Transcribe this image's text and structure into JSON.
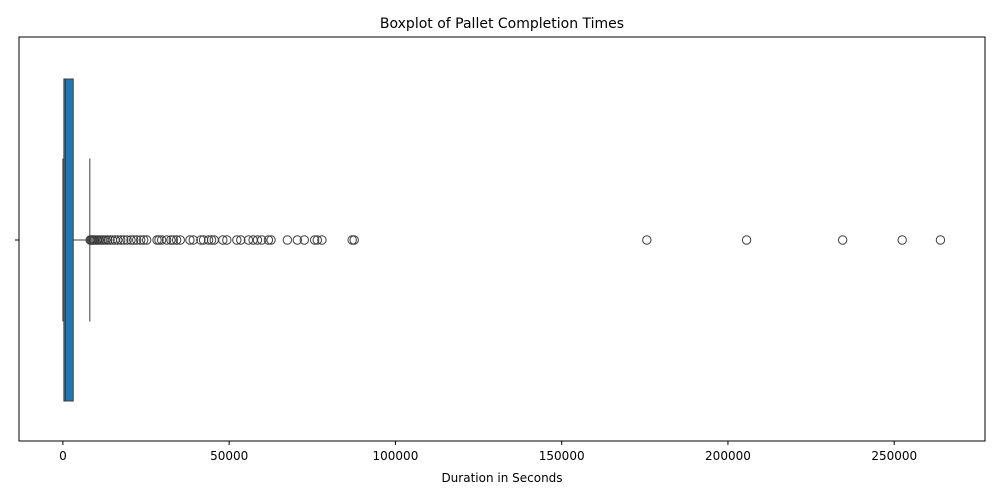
{
  "chart_data": {
    "type": "boxplot",
    "orientation": "horizontal",
    "title": "Boxplot of Pallet Completion Times",
    "xlabel": "Duration in Seconds",
    "ylabel": "",
    "xlim": [
      -13200,
      277300
    ],
    "xticks": [
      0,
      50000,
      100000,
      150000,
      200000,
      250000
    ],
    "xtick_labels": [
      "0",
      "50000",
      "100000",
      "150000",
      "200000",
      "250000"
    ],
    "grid": false,
    "legend": "none",
    "box_color": "#1f77b4",
    "line_color": "#3d3d3d",
    "box": {
      "whisker_low": 0,
      "q1": 300,
      "median": 800,
      "q3": 3100,
      "whisker_high": 8100
    },
    "outliers": [
      8200,
      8500,
      8800,
      9100,
      9500,
      9900,
      10300,
      10800,
      11300,
      11800,
      12300,
      12900,
      13500,
      14200,
      14900,
      15700,
      16500,
      17400,
      18300,
      19300,
      20500,
      21300,
      22200,
      23400,
      24300,
      25200,
      28300,
      28900,
      29700,
      31200,
      32500,
      33200,
      34200,
      35300,
      38200,
      39200,
      41500,
      42300,
      43800,
      44700,
      45500,
      48100,
      49300,
      52300,
      53500,
      55800,
      57200,
      58500,
      59800,
      61800,
      62600,
      67500,
      70500,
      72600,
      75700,
      76500,
      77900,
      87000,
      87600,
      175600,
      205600,
      234500,
      252400,
      263900
    ]
  }
}
